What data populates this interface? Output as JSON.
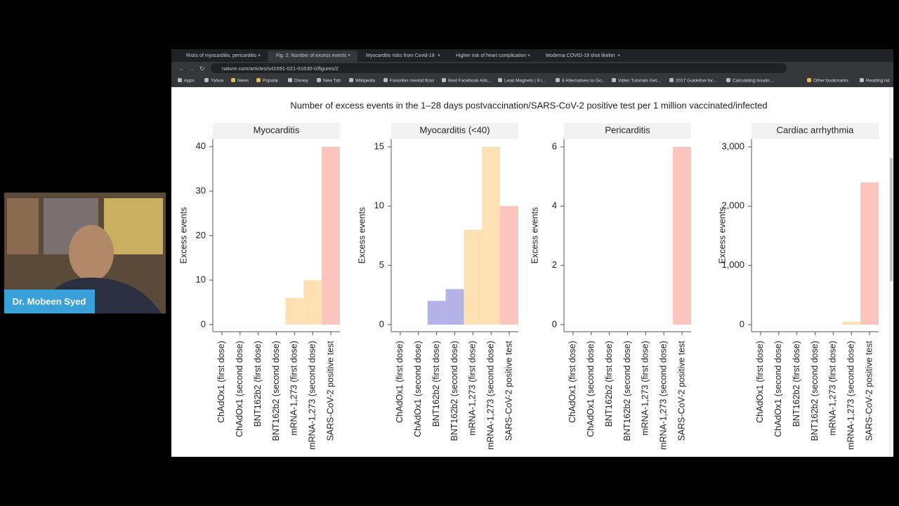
{
  "browser": {
    "tabs": [
      "Risks of myocarditis, pericarditis",
      "Fig. 2: Number of excess events",
      "Myocarditis risks from Covid-19",
      "Higher risk of heart complication",
      "Moderna COVID-19 shot likelier"
    ],
    "url": "nature.com/articles/s41591-021-01630-0/figures/2",
    "bookmarks": [
      "Apps",
      "Yahoo",
      "News",
      "Popular",
      "Disney",
      "New Tab",
      "Wikipedia",
      "Favorites mental floss",
      "Best Facebook Ads...",
      "Lead Magnets | 9 I...",
      "8 Alternatives to Go...",
      "Video Tutorials Get...",
      "2017 Guideline for...",
      "Calculating Insulin...",
      "Other bookmarks",
      "Reading list"
    ]
  },
  "presenter": {
    "name": "Dr. Mobeen Syed"
  },
  "figure_title": "Number of excess events in the 1–28 days postvaccination/SARS-CoV-2 positive test per 1 million vaccinated/infected",
  "chart_data": [
    {
      "type": "bar",
      "title": "Myocarditis",
      "ylabel": "Excess events",
      "categories": [
        "ChAdOx1 (first dose)",
        "ChAdOx1 (second dose)",
        "BNT162b2 (first dose)",
        "BNT162b2 (second dose)",
        "mRNA-1,273 (first dose)",
        "mRNA-1,273 (second dose)",
        "SARS-CoV-2 positive test"
      ],
      "values": [
        0,
        0,
        0,
        0,
        6,
        10,
        40
      ],
      "colors": [
        "#b8e0c8",
        "#b8e0c8",
        "#b3b3e8",
        "#b3b3e8",
        "#fde0b4",
        "#fde0b4",
        "#fbc4bc"
      ],
      "ylim": [
        -1.6,
        41.7
      ],
      "yticks": [
        0,
        10,
        20,
        30,
        40
      ]
    },
    {
      "type": "bar",
      "title": "Myocarditis (<40)",
      "ylabel": "Excess events",
      "categories": [
        "ChAdOx1 (first dose)",
        "ChAdOx1 (second dose)",
        "BNT162b2 (first dose)",
        "BNT162b2 (second dose)",
        "mRNA-1,273 (first dose)",
        "mRNA-1,273 (second dose)",
        "SARS-CoV-2 positive test"
      ],
      "values": [
        0,
        0,
        2,
        3,
        8,
        15,
        10
      ],
      "colors": [
        "#b8e0c8",
        "#b8e0c8",
        "#b3b3e8",
        "#b3b3e8",
        "#fde0b4",
        "#fde0b4",
        "#fbc4bc"
      ],
      "ylim": [
        -0.6,
        15.65
      ],
      "yticks": [
        0,
        5,
        10,
        15
      ]
    },
    {
      "type": "bar",
      "title": "Pericarditis",
      "ylabel": "Excess events",
      "categories": [
        "ChAdOx1 (first dose)",
        "ChAdOx1 (second dose)",
        "BNT162b2 (first dose)",
        "BNT162b2 (second dose)",
        "mRNA-1,273 (first dose)",
        "mRNA-1,273 (second dose)",
        "SARS-CoV-2 positive test"
      ],
      "values": [
        0,
        0,
        0,
        0,
        0,
        0,
        6
      ],
      "colors": [
        "#b8e0c8",
        "#b8e0c8",
        "#b3b3e8",
        "#b3b3e8",
        "#fde0b4",
        "#fde0b4",
        "#fbc4bc"
      ],
      "ylim": [
        -0.24,
        6.26
      ],
      "yticks": [
        0,
        2,
        4,
        6
      ]
    },
    {
      "type": "bar",
      "title": "Cardiac arrhythmia",
      "ylabel": "Excess events",
      "categories": [
        "ChAdOx1 (first dose)",
        "ChAdOx1 (second dose)",
        "BNT162b2 (first dose)",
        "BNT162b2 (second dose)",
        "mRNA-1,273 (first dose)",
        "mRNA-1,273 (second dose)",
        "SARS-CoV-2 positive test"
      ],
      "values": [
        0,
        0,
        0,
        0,
        0,
        50,
        2400
      ],
      "colors": [
        "#b8e0c8",
        "#b8e0c8",
        "#b3b3e8",
        "#b3b3e8",
        "#fde0b4",
        "#fde0b4",
        "#fbc4bc"
      ],
      "ylim": [
        -119,
        3130
      ],
      "yticks": [
        0,
        {
          "value": 1000,
          "label": "1,000"
        },
        {
          "value": 2000,
          "label": "2,000"
        },
        {
          "value": 3000,
          "label": "3,000"
        }
      ]
    }
  ]
}
